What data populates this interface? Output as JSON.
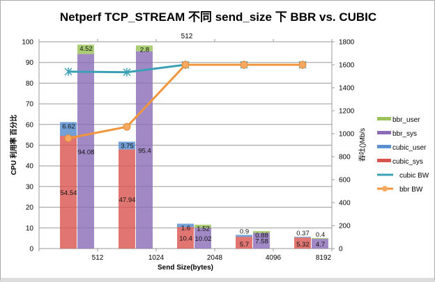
{
  "chart_data": {
    "type": "bar",
    "title": "Netperf TCP_STREAM 不同 send_size 下  BBR vs. CUBIC",
    "top_axis_label": "512",
    "xlabel": "Send Size(bytes)",
    "ylabel": "CPU 利用率 百分比",
    "y2label": "吞吐()Mb/s",
    "categories": [
      "512",
      "1024",
      "2048",
      "4096",
      "8192"
    ],
    "ylim": [
      0,
      100
    ],
    "yticks": [
      0,
      10,
      20,
      30,
      40,
      50,
      60,
      70,
      80,
      90,
      100
    ],
    "y2lim": [
      0,
      1800
    ],
    "y2ticks": [
      0,
      200,
      400,
      600,
      800,
      1000,
      1200,
      1400,
      1600,
      1800
    ],
    "grid": true,
    "legend_placement": "right",
    "stacks": [
      {
        "stack": "cubic",
        "series": [
          {
            "name": "cubic_sys",
            "values": [
              54.54,
              47.94,
              10.4,
              5.7,
              5.32
            ],
            "color": "#d9534f"
          },
          {
            "name": "cubic_user",
            "values": [
              6.62,
              3.75,
              1.6,
              0.9,
              0.37
            ],
            "color": "#5b8fd0"
          }
        ]
      },
      {
        "stack": "bbr",
        "series": [
          {
            "name": "bbr_sys",
            "values": [
              94.08,
              95.4,
              10.02,
              7.58,
              4.7
            ],
            "color": "#8a6bb8"
          },
          {
            "name": "bbr_user",
            "values": [
              4.52,
              2.8,
              1.52,
              0.88,
              0.4
            ],
            "color": "#9bc35a"
          }
        ]
      }
    ],
    "lines": [
      {
        "name": "cubic BW",
        "axis": "y2",
        "values": [
          1540,
          1535,
          1600,
          1600,
          1600
        ],
        "color": "#3aa0b5",
        "marker": "star"
      },
      {
        "name": "bbr BW",
        "axis": "y2",
        "values": [
          960,
          1060,
          1600,
          1600,
          1600
        ],
        "color": "#f0953c",
        "marker": "circle"
      }
    ],
    "legend": [
      "bbr_user",
      "bbr_sys",
      "cubic_user",
      "cubic_sys",
      "cubic BW",
      "bbr BW"
    ]
  }
}
